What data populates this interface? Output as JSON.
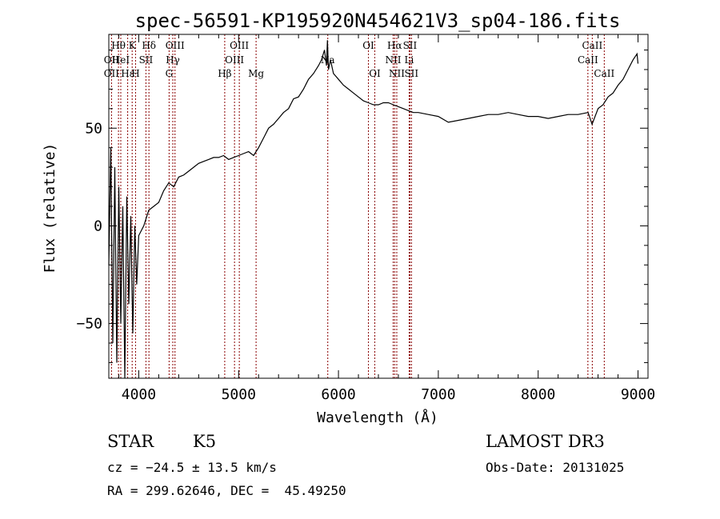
{
  "chart_data": {
    "type": "line",
    "title": "spec-56591-KP195920N454621V3_sp04-186.fits",
    "xlabel": "Wavelength (Å)",
    "ylabel": "Flux (relative)",
    "xlim": [
      3700,
      9100
    ],
    "ylim": [
      -78,
      98
    ],
    "x_ticks": [
      4000,
      5000,
      6000,
      7000,
      8000,
      9000
    ],
    "y_ticks": [
      -50,
      0,
      50
    ],
    "grid": false,
    "series": [
      {
        "x": [
          3700,
          3720,
          3740,
          3760,
          3780,
          3800,
          3820,
          3840,
          3860,
          3880,
          3900,
          3920,
          3940,
          3960,
          3980,
          4000,
          4050,
          4100,
          4150,
          4200,
          4250,
          4300,
          4350,
          4400,
          4450,
          4500,
          4550,
          4600,
          4650,
          4700,
          4750,
          4800,
          4850,
          4900,
          4950,
          5000,
          5050,
          5100,
          5150,
          5200,
          5250,
          5300,
          5350,
          5400,
          5450,
          5500,
          5550,
          5600,
          5650,
          5700,
          5750,
          5800,
          5830,
          5860,
          5880,
          5890,
          5900,
          5920,
          5950,
          6000,
          6050,
          6100,
          6150,
          6200,
          6250,
          6300,
          6350,
          6400,
          6450,
          6500,
          6550,
          6600,
          6650,
          6700,
          6750,
          6800,
          6900,
          7000,
          7100,
          7200,
          7300,
          7400,
          7500,
          7600,
          7700,
          7800,
          7900,
          8000,
          8100,
          8200,
          8300,
          8400,
          8500,
          8540,
          8600,
          8650,
          8700,
          8750,
          8800,
          8850,
          8900,
          8950,
          8990,
          9000
        ],
        "y": [
          -20,
          40,
          -60,
          30,
          -70,
          20,
          -50,
          10,
          -80,
          15,
          -40,
          5,
          -55,
          0,
          -30,
          -5,
          0,
          8,
          10,
          12,
          18,
          22,
          20,
          25,
          26,
          28,
          30,
          32,
          33,
          34,
          35,
          35,
          36,
          34,
          35,
          36,
          37,
          38,
          36,
          40,
          45,
          50,
          52,
          55,
          58,
          60,
          65,
          66,
          70,
          75,
          78,
          82,
          85,
          90,
          82,
          95,
          80,
          85,
          78,
          75,
          72,
          70,
          68,
          66,
          64,
          63,
          62,
          62,
          63,
          63,
          62,
          61,
          60,
          59,
          58,
          58,
          57,
          56,
          53,
          54,
          55,
          56,
          57,
          57,
          58,
          57,
          56,
          56,
          55,
          56,
          57,
          57,
          58,
          52,
          60,
          62,
          66,
          68,
          72,
          75,
          80,
          85,
          88,
          83
        ]
      }
    ],
    "line_markers": [
      {
        "name": "Hθ",
        "wavelength": 3797,
        "row": 1
      },
      {
        "name": "K",
        "wavelength": 3934,
        "row": 1
      },
      {
        "name": "Hδ",
        "wavelength": 4102,
        "row": 1
      },
      {
        "name": "OIII",
        "wavelength": 4363,
        "row": 1
      },
      {
        "name": "OIII",
        "wavelength": 5007,
        "row": 1
      },
      {
        "name": "OI",
        "wavelength": 6300,
        "row": 1
      },
      {
        "name": "Hα",
        "wavelength": 6563,
        "row": 1
      },
      {
        "name": "SII",
        "wavelength": 6716,
        "row": 1
      },
      {
        "name": "CaII",
        "wavelength": 8542,
        "row": 1
      },
      {
        "name": "OII",
        "wavelength": 3727,
        "row": 2
      },
      {
        "name": "HeI",
        "wavelength": 3820,
        "row": 2
      },
      {
        "name": "SII",
        "wavelength": 4072,
        "row": 2
      },
      {
        "name": "Hγ",
        "wavelength": 4341,
        "row": 2
      },
      {
        "name": "OIII",
        "wavelength": 4959,
        "row": 2
      },
      {
        "name": "Na",
        "wavelength": 5893,
        "row": 2
      },
      {
        "name": "NII",
        "wavelength": 6548,
        "row": 2
      },
      {
        "name": "Li",
        "wavelength": 6708,
        "row": 2
      },
      {
        "name": "CaII",
        "wavelength": 8498,
        "row": 2
      },
      {
        "name": "OII",
        "wavelength": 3727,
        "row": 3
      },
      {
        "name": "Hε",
        "wavelength": 3889,
        "row": 3
      },
      {
        "name": "H",
        "wavelength": 3968,
        "row": 3
      },
      {
        "name": "G",
        "wavelength": 4304,
        "row": 3
      },
      {
        "name": "Hβ",
        "wavelength": 4861,
        "row": 3
      },
      {
        "name": "Mg",
        "wavelength": 5175,
        "row": 3
      },
      {
        "name": "OI",
        "wavelength": 6364,
        "row": 3
      },
      {
        "name": "NII",
        "wavelength": 6584,
        "row": 3
      },
      {
        "name": "SII",
        "wavelength": 6731,
        "row": 3
      },
      {
        "name": "CaII",
        "wavelength": 8662,
        "row": 3
      }
    ]
  },
  "info": {
    "object_class": "STAR",
    "subclass": "K5",
    "survey": "LAMOST DR3",
    "redshift": "cz = −24.5 ± 13.5 km/s",
    "obs_date": "Obs-Date: 20131025",
    "coords": "RA = 299.62646, DEC =  45.49250"
  },
  "colors": {
    "spectrum": "#000000",
    "line_markers": "#8b0000",
    "axes": "#000000",
    "background": "#ffffff"
  }
}
